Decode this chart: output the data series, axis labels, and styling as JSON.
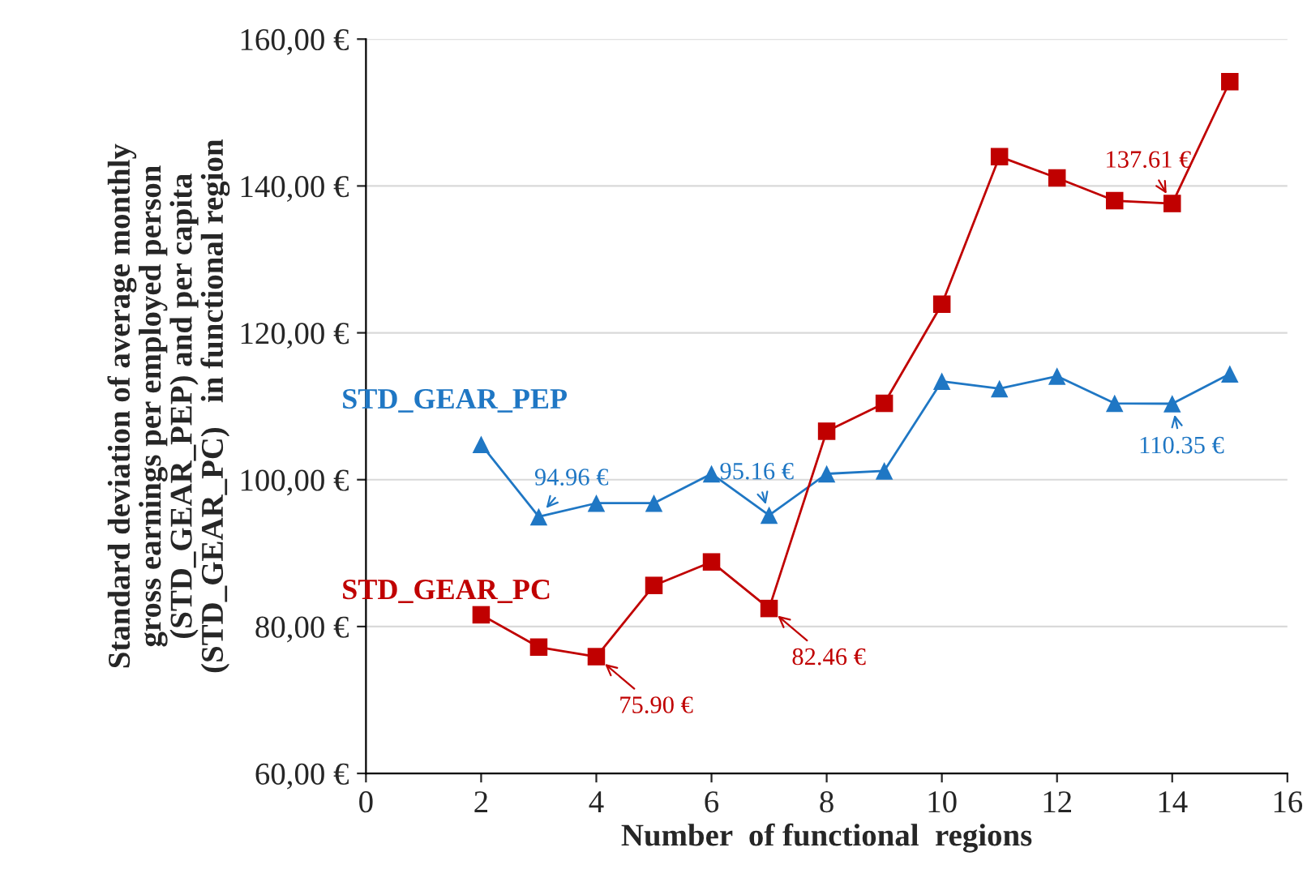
{
  "chart_data": {
    "type": "line",
    "xlabel": "Number  of functional  regions",
    "ylabel": "Standard deviation of average monthly\ngross earnings per employed person\n(STD_GEAR_PEP) and per capita\n(STD_GEAR_PC)   in functional region",
    "x": [
      2,
      3,
      4,
      5,
      6,
      7,
      8,
      9,
      10,
      11,
      12,
      13,
      14,
      15
    ],
    "series": [
      {
        "name": "STD_GEAR_PEP",
        "color": "#1f77c4",
        "marker": "triangle",
        "values": [
          104.8,
          94.96,
          96.8,
          96.8,
          100.8,
          95.16,
          100.8,
          101.2,
          113.4,
          112.4,
          114.1,
          110.4,
          110.35,
          114.4
        ]
      },
      {
        "name": "STD_GEAR_PC",
        "color": "#c00000",
        "marker": "square",
        "values": [
          81.6,
          77.2,
          75.9,
          85.6,
          88.8,
          82.46,
          106.6,
          110.4,
          123.9,
          144.0,
          141.1,
          138.0,
          137.61,
          154.2
        ]
      }
    ],
    "xlim": [
      0,
      16
    ],
    "xticks": [
      0,
      2,
      4,
      6,
      8,
      10,
      12,
      14,
      16
    ],
    "ylim": [
      60,
      160
    ],
    "yticks": [
      {
        "value": 60,
        "label": "60,00 €"
      },
      {
        "value": 80,
        "label": "80,00 €"
      },
      {
        "value": 100,
        "label": "100,00 €"
      },
      {
        "value": 120,
        "label": "120,00 €"
      },
      {
        "value": 140,
        "label": "140,00 €"
      },
      {
        "value": 160,
        "label": "160,00 €"
      }
    ],
    "grid": "y",
    "legend": false,
    "line_style": "solid",
    "annotations": [
      {
        "text": "94.96 €",
        "x": 3,
        "y": 94.96
      },
      {
        "text": "95.16 €",
        "x": 7,
        "y": 95.16
      },
      {
        "text": "110.35 €",
        "x": 14,
        "y": 110.35
      },
      {
        "text": "75.90 €",
        "x": 4,
        "y": 75.9
      },
      {
        "text": "82.46 €",
        "x": 7,
        "y": 82.46
      },
      {
        "text": "137.61 €",
        "x": 14,
        "y": 137.61
      }
    ]
  }
}
